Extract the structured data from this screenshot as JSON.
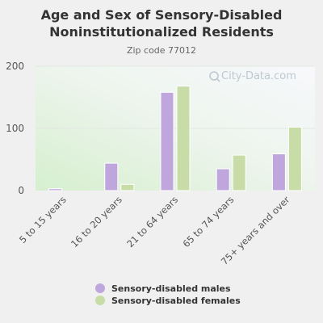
{
  "chart_data": {
    "type": "bar",
    "title_lines": [
      "Age and Sex of Sensory-Disabled",
      "Noninstitutionalized Residents"
    ],
    "subtitle": "Zip code 77012",
    "categories": [
      "5 to 15 years",
      "16 to 20 years",
      "21 to 64 years",
      "65 to 74 years",
      "75+ years and over"
    ],
    "series": [
      {
        "name": "Sensory-disabled males",
        "color": "#bfa6dc",
        "values": [
          3,
          44,
          158,
          35,
          59
        ]
      },
      {
        "name": "Sensory-disabled females",
        "color": "#c8dca8",
        "values": [
          0,
          10,
          168,
          57,
          102
        ]
      }
    ],
    "ylim": [
      0,
      200
    ],
    "yticks": [
      0,
      100,
      200
    ],
    "grid": true,
    "legend_position": "bottom",
    "watermark": "City-Data.com"
  }
}
